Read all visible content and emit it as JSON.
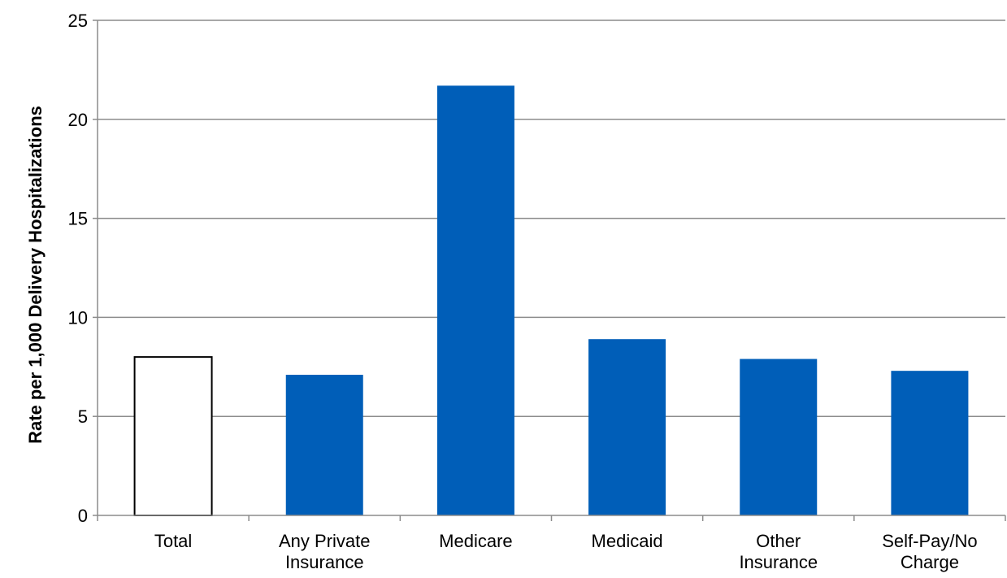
{
  "chart_data": {
    "type": "bar",
    "title": "",
    "xlabel": "",
    "ylabel": "Rate per 1,000 Delivery Hospitalizations",
    "ylim": [
      0,
      25
    ],
    "yticks": [
      0,
      5,
      10,
      15,
      20,
      25
    ],
    "grid": true,
    "categories": [
      [
        "Total"
      ],
      [
        "Any Private",
        "Insurance"
      ],
      [
        "Medicare"
      ],
      [
        "Medicaid"
      ],
      [
        "Other",
        "Insurance"
      ],
      [
        "Self-Pay/No",
        "Charge"
      ]
    ],
    "values": [
      8.0,
      7.1,
      21.7,
      8.9,
      7.9,
      7.3
    ],
    "bar_styles": [
      "outline",
      "filled",
      "filled",
      "filled",
      "filled",
      "filled"
    ]
  },
  "colors": {
    "bar_fill": "#005EB8",
    "outline_fill": "#FFFFFF",
    "outline_stroke": "#000000",
    "grid": "#8C8C8C",
    "axis": "#8C8C8C"
  }
}
